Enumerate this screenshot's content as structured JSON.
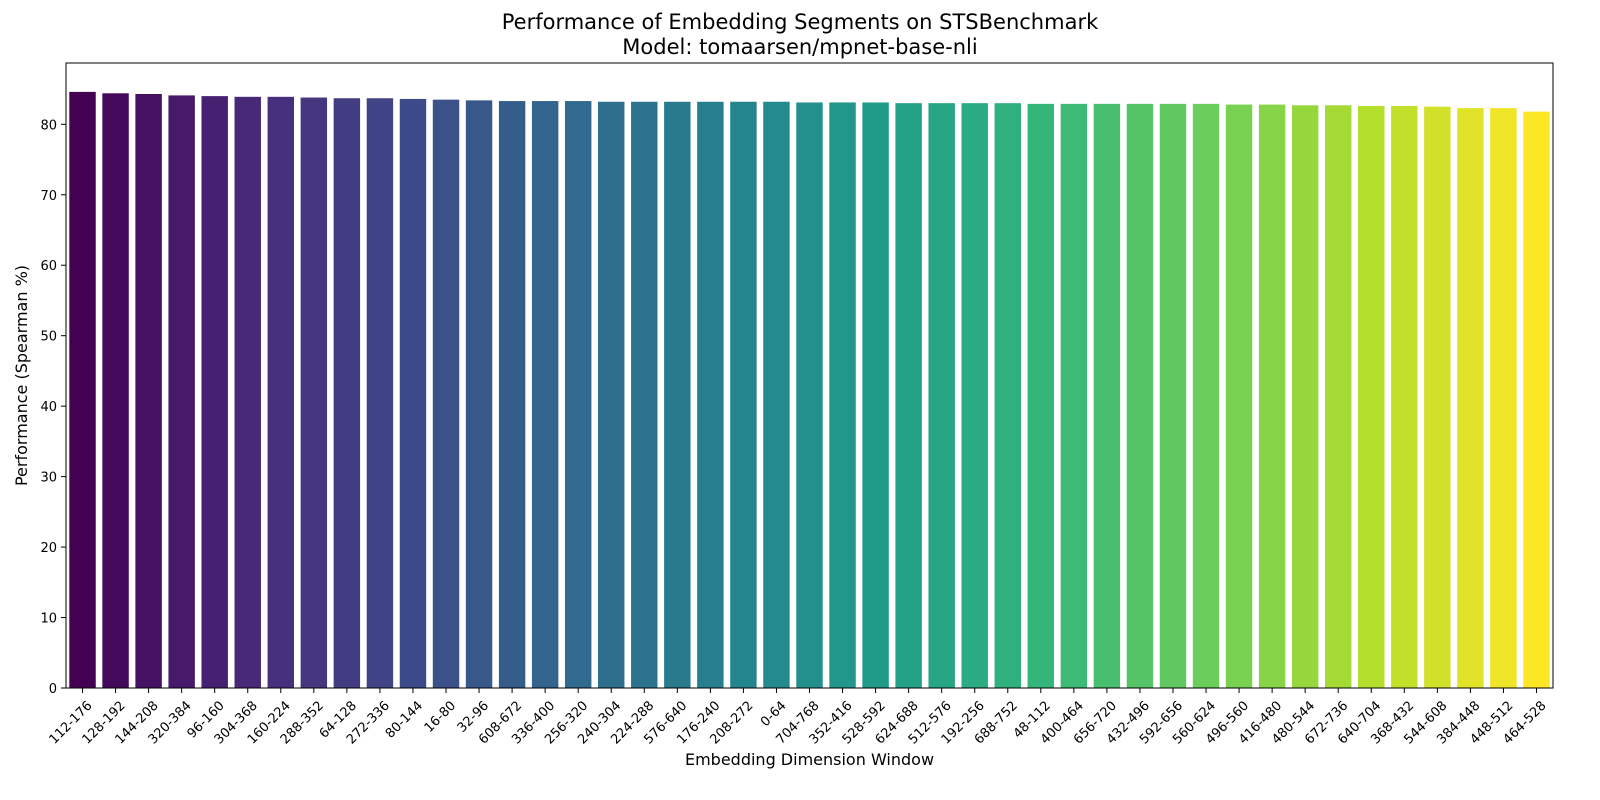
{
  "chart_data": {
    "type": "bar",
    "title": "Performance of Embedding Segments on STSBenchmark",
    "subtitle": "Model: tomaarsen/mpnet-base-nli",
    "xlabel": "Embedding Dimension Window",
    "ylabel": "Performance (Spearman %)",
    "ylim": [
      0,
      88.7
    ],
    "yticks": [
      0,
      10,
      20,
      30,
      40,
      50,
      60,
      70,
      80
    ],
    "grid": false,
    "legend": "none",
    "colormap": "viridis",
    "colors": [
      "#440154",
      "#482878",
      "#3e4989",
      "#31688e",
      "#26828e",
      "#1f9e89",
      "#35b779",
      "#6ece58",
      "#b5de2b",
      "#fde725"
    ],
    "categories": [
      "112-176",
      "128-192",
      "144-208",
      "320-384",
      "96-160",
      "304-368",
      "160-224",
      "288-352",
      "64-128",
      "272-336",
      "80-144",
      "16-80",
      "32-96",
      "608-672",
      "336-400",
      "256-320",
      "240-304",
      "224-288",
      "576-640",
      "176-240",
      "208-272",
      "0-64",
      "704-768",
      "352-416",
      "528-592",
      "624-688",
      "512-576",
      "192-256",
      "688-752",
      "48-112",
      "400-464",
      "656-720",
      "432-496",
      "592-656",
      "560-624",
      "496-560",
      "416-480",
      "480-544",
      "672-736",
      "640-704",
      "368-432",
      "544-608",
      "384-448",
      "448-512",
      "464-528"
    ],
    "values": [
      84.6,
      84.4,
      84.3,
      84.1,
      84.0,
      83.9,
      83.9,
      83.8,
      83.7,
      83.7,
      83.6,
      83.5,
      83.4,
      83.3,
      83.3,
      83.3,
      83.2,
      83.2,
      83.2,
      83.2,
      83.2,
      83.2,
      83.1,
      83.1,
      83.1,
      83.0,
      83.0,
      83.0,
      83.0,
      82.9,
      82.9,
      82.9,
      82.9,
      82.9,
      82.9,
      82.8,
      82.8,
      82.7,
      82.7,
      82.6,
      82.6,
      82.5,
      82.3,
      82.3,
      81.8
    ]
  }
}
